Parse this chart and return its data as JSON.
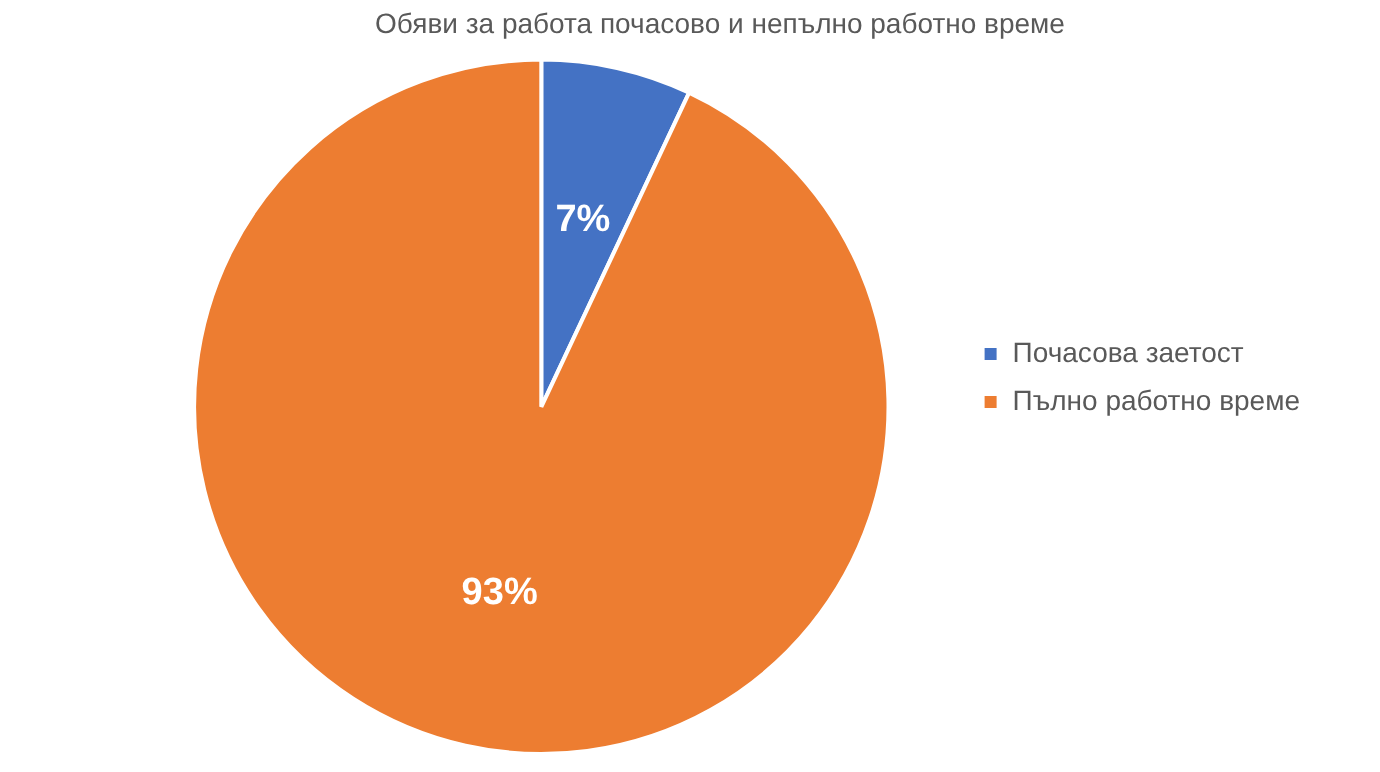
{
  "chart_data": {
    "type": "pie",
    "title": "Обяви за работа почасово и непълно работно време",
    "categories": [
      "Почасова заетост",
      "Пълно работно време"
    ],
    "values": [
      7,
      93
    ],
    "colors": [
      "#4472c4",
      "#ed7d31"
    ],
    "value_labels": [
      "7%",
      "93%"
    ],
    "legend": "right"
  }
}
